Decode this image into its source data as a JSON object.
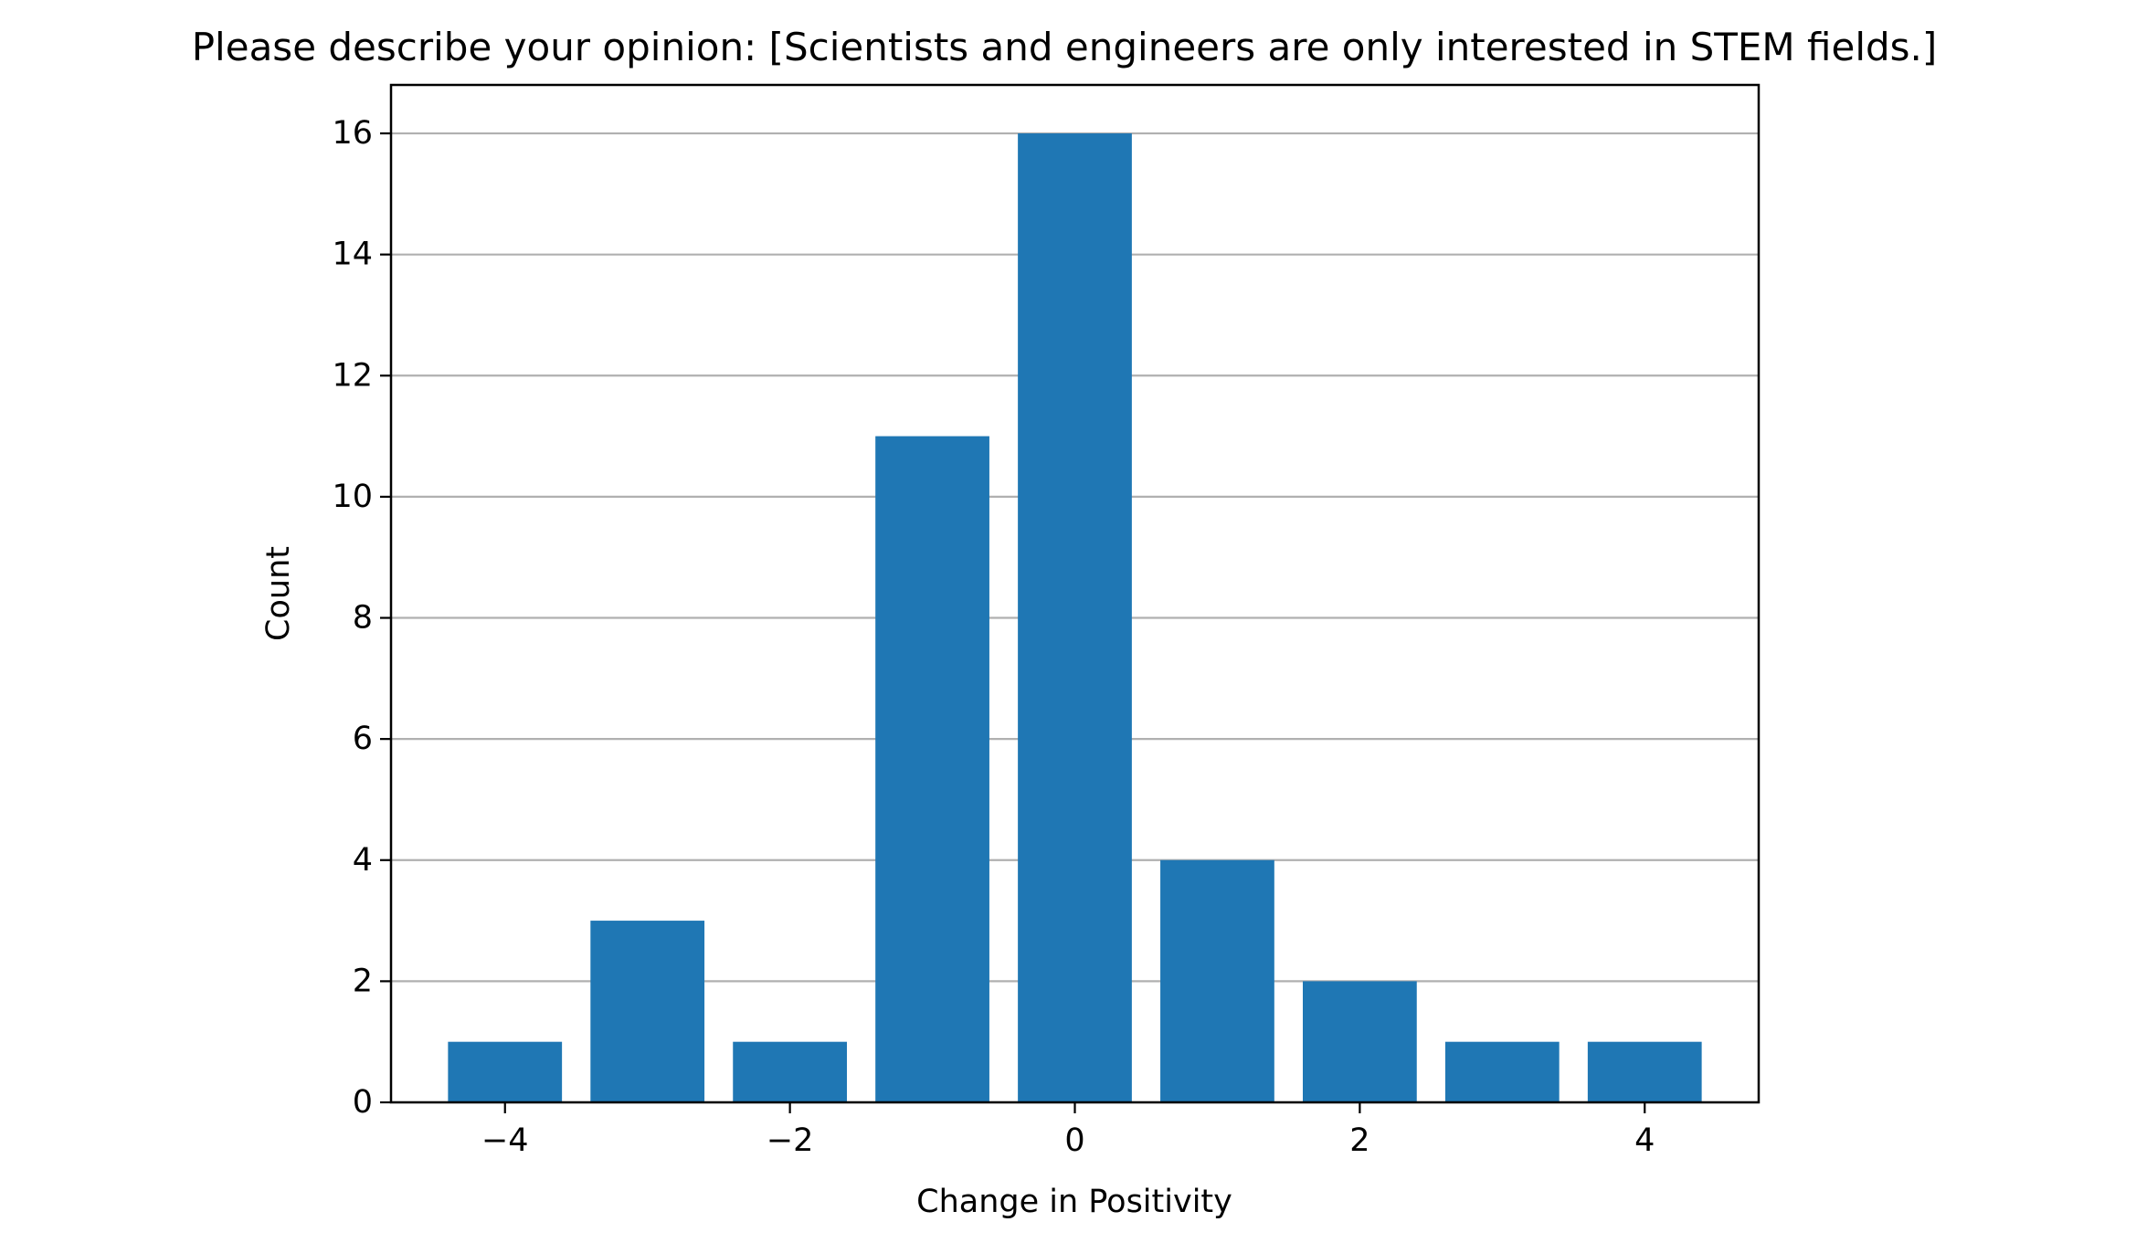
{
  "chart_data": {
    "type": "bar",
    "title": "Please describe your opinion: [Scientists and engineers are only interested in STEM fields.]",
    "xlabel": "Change in Positivity",
    "ylabel": "Count",
    "x": [
      -4,
      -3,
      -2,
      -1,
      0,
      1,
      2,
      3,
      4
    ],
    "values": [
      1,
      3,
      1,
      11,
      16,
      4,
      2,
      1,
      1
    ],
    "xlim": [
      -4.8,
      4.8
    ],
    "ylim": [
      0,
      16.8
    ],
    "xticks": [
      -4,
      -2,
      0,
      2,
      4
    ],
    "xtick_labels": [
      "−4",
      "−2",
      "0",
      "2",
      "4"
    ],
    "yticks": [
      0,
      2,
      4,
      6,
      8,
      10,
      12,
      14,
      16
    ],
    "ytick_labels": [
      "0",
      "2",
      "4",
      "6",
      "8",
      "10",
      "12",
      "14",
      "16"
    ],
    "bar_width": 0.8,
    "bar_color": "#1f77b4",
    "grid": "y-major",
    "grid_color": "#b0b0b0",
    "legend": "none"
  }
}
